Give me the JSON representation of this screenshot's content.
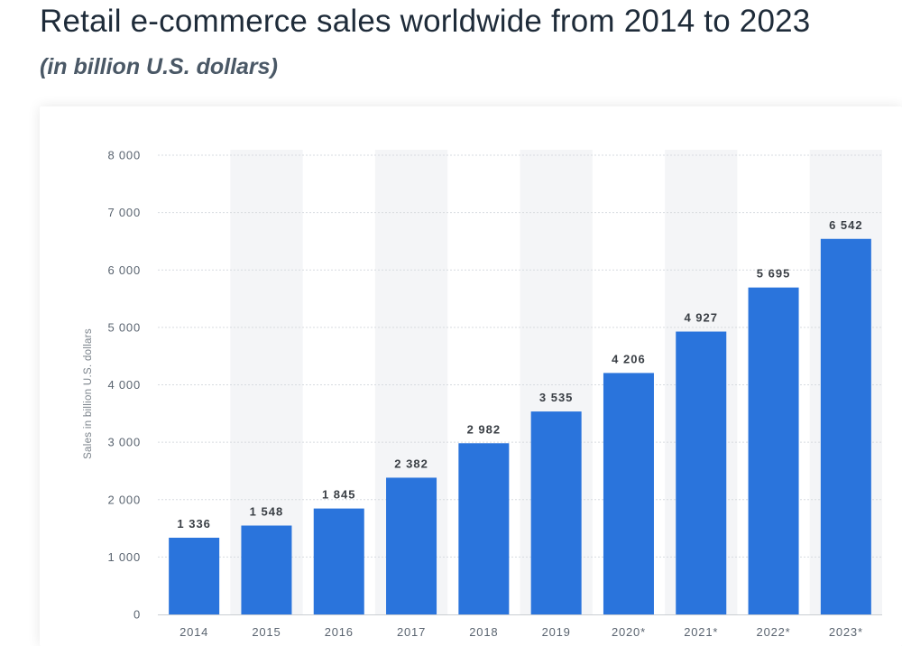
{
  "title": "Retail e-commerce sales worldwide from 2014 to 2023",
  "subtitle": "(in billion U.S. dollars)",
  "colors": {
    "bar": "#2a74dc",
    "band": "#f4f5f7",
    "grid": "#d7dbe0"
  },
  "chart_data": {
    "type": "bar",
    "title": "Retail e-commerce sales worldwide from 2014 to 2023",
    "subtitle": "(in billion U.S. dollars)",
    "xlabel": "",
    "ylabel": "Sales in billion U.S. dollars",
    "categories": [
      "2014",
      "2015",
      "2016",
      "2017",
      "2018",
      "2019",
      "2020*",
      "2021*",
      "2022*",
      "2023*"
    ],
    "values": [
      1336,
      1548,
      1845,
      2382,
      2982,
      3535,
      4206,
      4927,
      5695,
      6542
    ],
    "value_labels": [
      "1 336",
      "1 548",
      "1 845",
      "2 382",
      "2 982",
      "3 535",
      "4 206",
      "4 927",
      "5 695",
      "6 542"
    ],
    "ylim": [
      0,
      8000
    ],
    "yticks": [
      0,
      1000,
      2000,
      3000,
      4000,
      5000,
      6000,
      7000,
      8000
    ],
    "ytick_labels": [
      "0",
      "1 000",
      "2 000",
      "3 000",
      "4 000",
      "5 000",
      "6 000",
      "7 000",
      "8 000"
    ],
    "grid": true
  }
}
